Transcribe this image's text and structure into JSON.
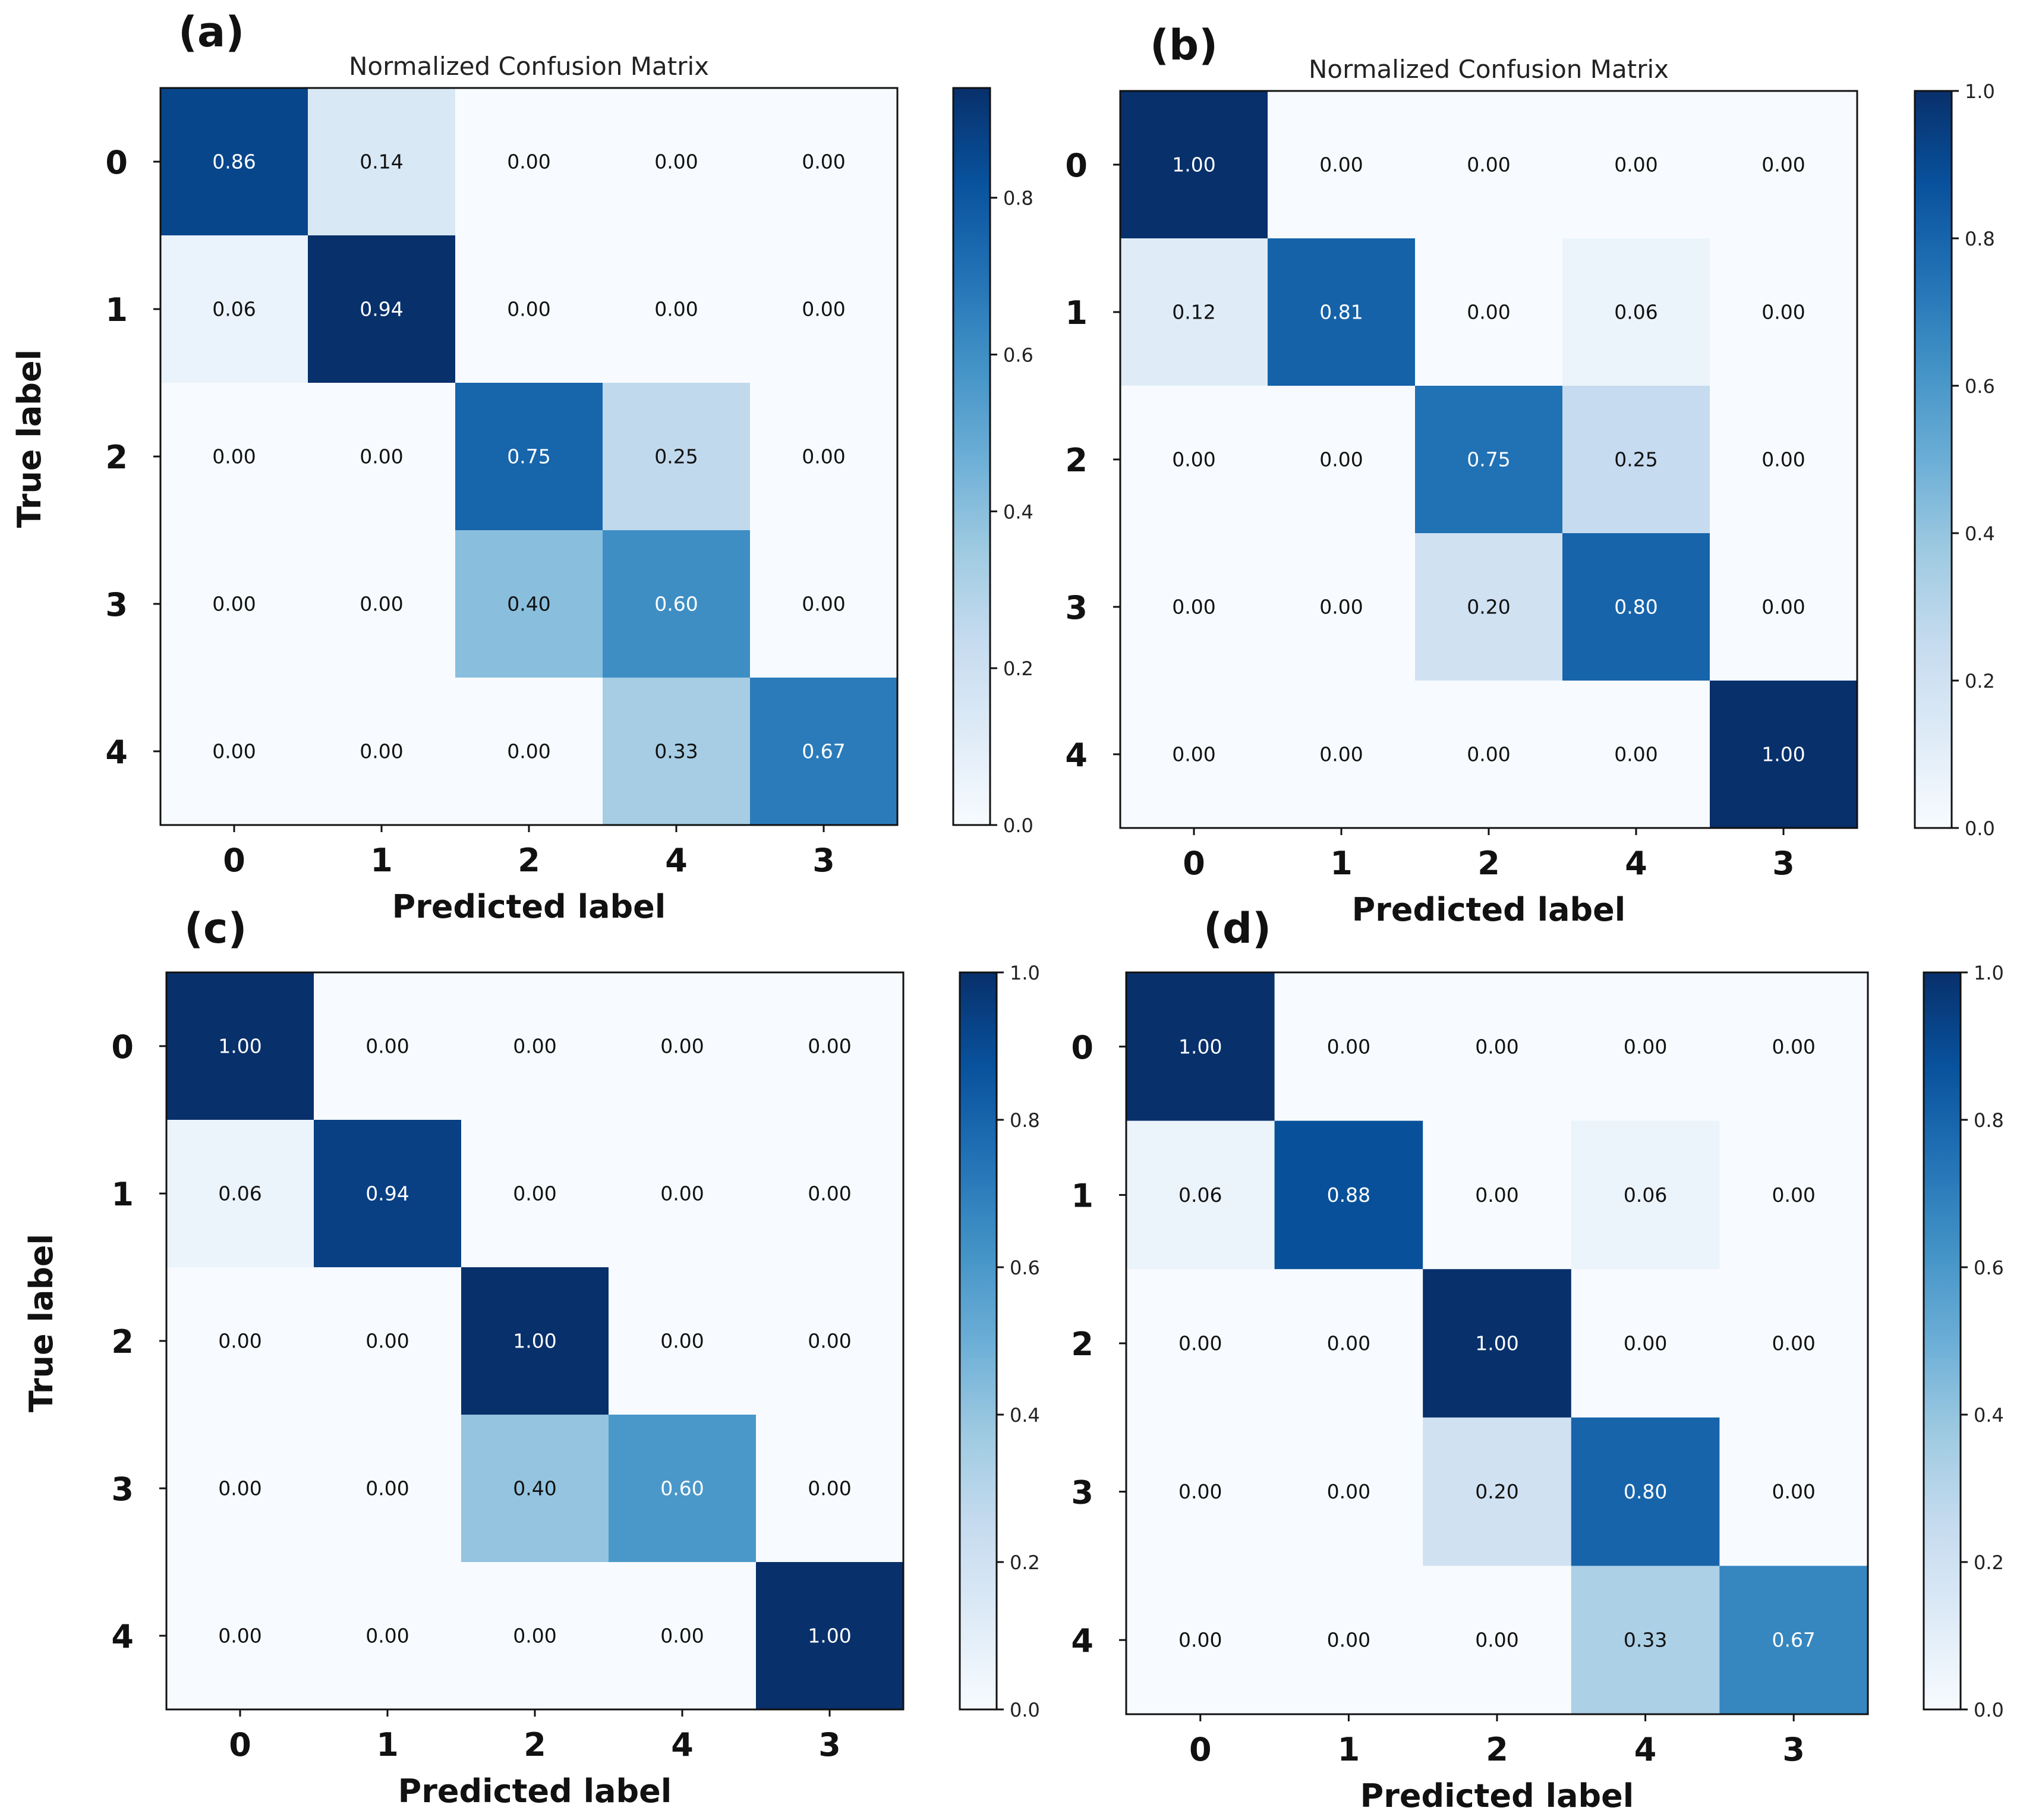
{
  "chart_data": [
    {
      "type": "heatmap",
      "panel_label": "(a)",
      "title": "Normalized Confusion Matrix",
      "xlabel": "Predicted label",
      "ylabel": "True label",
      "x_categories": [
        "0",
        "1",
        "2",
        "4",
        "3"
      ],
      "y_categories": [
        "0",
        "1",
        "2",
        "3",
        "4"
      ],
      "values": [
        [
          0.86,
          0.14,
          0.0,
          0.0,
          0.0
        ],
        [
          0.06,
          0.94,
          0.0,
          0.0,
          0.0
        ],
        [
          0.0,
          0.0,
          0.75,
          0.25,
          0.0
        ],
        [
          0.0,
          0.0,
          0.4,
          0.6,
          0.0
        ],
        [
          0.0,
          0.0,
          0.0,
          0.33,
          0.67
        ]
      ],
      "cell_labels": [
        [
          "0.86",
          "0.14",
          "0.00",
          "0.00",
          "0.00"
        ],
        [
          "0.06",
          "0.94",
          "0.00",
          "0.00",
          "0.00"
        ],
        [
          "0.00",
          "0.00",
          "0.75",
          "0.25",
          "0.00"
        ],
        [
          "0.00",
          "0.00",
          "0.40",
          "0.60",
          "0.00"
        ],
        [
          "0.00",
          "0.00",
          "0.00",
          "0.33",
          "0.67"
        ]
      ],
      "colorbar": {
        "range": [
          0,
          0.94
        ],
        "ticks": [
          0,
          0.2,
          0.4,
          0.6,
          0.8
        ],
        "tick_labels": [
          "0.0",
          "0.2",
          "0.4",
          "0.6",
          "0.8"
        ]
      }
    },
    {
      "type": "heatmap",
      "panel_label": "(b)",
      "title": "Normalized Confusion Matrix",
      "xlabel": "Predicted label",
      "ylabel": "",
      "x_categories": [
        "0",
        "1",
        "2",
        "4",
        "3"
      ],
      "y_categories": [
        "0",
        "1",
        "2",
        "3",
        "4"
      ],
      "values": [
        [
          1.0,
          0.0,
          0.0,
          0.0,
          0.0
        ],
        [
          0.12,
          0.81,
          0.0,
          0.06,
          0.0
        ],
        [
          0.0,
          0.0,
          0.75,
          0.25,
          0.0
        ],
        [
          0.0,
          0.0,
          0.2,
          0.8,
          0.0
        ],
        [
          0.0,
          0.0,
          0.0,
          0.0,
          1.0
        ]
      ],
      "cell_labels": [
        [
          "1.00",
          "0.00",
          "0.00",
          "0.00",
          "0.00"
        ],
        [
          "0.12",
          "0.81",
          "0.00",
          "0.06",
          "0.00"
        ],
        [
          "0.00",
          "0.00",
          "0.75",
          "0.25",
          "0.00"
        ],
        [
          "0.00",
          "0.00",
          "0.20",
          "0.80",
          "0.00"
        ],
        [
          "0.00",
          "0.00",
          "0.00",
          "0.00",
          "1.00"
        ]
      ],
      "colorbar": {
        "range": [
          0,
          1.0
        ],
        "ticks": [
          0,
          0.2,
          0.4,
          0.6,
          0.8,
          1.0
        ],
        "tick_labels": [
          "0.0",
          "0.2",
          "0.4",
          "0.6",
          "0.8",
          "1.0"
        ]
      }
    },
    {
      "type": "heatmap",
      "panel_label": "(c)",
      "title": "",
      "xlabel": "Predicted label",
      "ylabel": "True label",
      "x_categories": [
        "0",
        "1",
        "2",
        "4",
        "3"
      ],
      "y_categories": [
        "0",
        "1",
        "2",
        "3",
        "4"
      ],
      "values": [
        [
          1.0,
          0.0,
          0.0,
          0.0,
          0.0
        ],
        [
          0.06,
          0.94,
          0.0,
          0.0,
          0.0
        ],
        [
          0.0,
          0.0,
          1.0,
          0.0,
          0.0
        ],
        [
          0.0,
          0.0,
          0.4,
          0.6,
          0.0
        ],
        [
          0.0,
          0.0,
          0.0,
          0.0,
          1.0
        ]
      ],
      "cell_labels": [
        [
          "1.00",
          "0.00",
          "0.00",
          "0.00",
          "0.00"
        ],
        [
          "0.06",
          "0.94",
          "0.00",
          "0.00",
          "0.00"
        ],
        [
          "0.00",
          "0.00",
          "1.00",
          "0.00",
          "0.00"
        ],
        [
          "0.00",
          "0.00",
          "0.40",
          "0.60",
          "0.00"
        ],
        [
          "0.00",
          "0.00",
          "0.00",
          "0.00",
          "1.00"
        ]
      ],
      "colorbar": {
        "range": [
          0,
          1.0
        ],
        "ticks": [
          0,
          0.2,
          0.4,
          0.6,
          0.8,
          1.0
        ],
        "tick_labels": [
          "0.0",
          "0.2",
          "0.4",
          "0.6",
          "0.8",
          "1.0"
        ]
      }
    },
    {
      "type": "heatmap",
      "panel_label": "(d)",
      "title": "",
      "xlabel": "Predicted label",
      "ylabel": "",
      "x_categories": [
        "0",
        "1",
        "2",
        "4",
        "3"
      ],
      "y_categories": [
        "0",
        "1",
        "2",
        "3",
        "4"
      ],
      "values": [
        [
          1.0,
          0.0,
          0.0,
          0.0,
          0.0
        ],
        [
          0.06,
          0.88,
          0.0,
          0.06,
          0.0
        ],
        [
          0.0,
          0.0,
          1.0,
          0.0,
          0.0
        ],
        [
          0.0,
          0.0,
          0.2,
          0.8,
          0.0
        ],
        [
          0.0,
          0.0,
          0.0,
          0.33,
          0.67
        ]
      ],
      "cell_labels": [
        [
          "1.00",
          "0.00",
          "0.00",
          "0.00",
          "0.00"
        ],
        [
          "0.06",
          "0.88",
          "0.00",
          "0.06",
          "0.00"
        ],
        [
          "0.00",
          "0.00",
          "1.00",
          "0.00",
          "0.00"
        ],
        [
          "0.00",
          "0.00",
          "0.20",
          "0.80",
          "0.00"
        ],
        [
          "0.00",
          "0.00",
          "0.00",
          "0.33",
          "0.67"
        ]
      ],
      "colorbar": {
        "range": [
          0,
          1.0
        ],
        "ticks": [
          0,
          0.2,
          0.4,
          0.6,
          0.8,
          1.0
        ],
        "tick_labels": [
          "0.0",
          "0.2",
          "0.4",
          "0.6",
          "0.8",
          "1.0"
        ]
      }
    }
  ]
}
